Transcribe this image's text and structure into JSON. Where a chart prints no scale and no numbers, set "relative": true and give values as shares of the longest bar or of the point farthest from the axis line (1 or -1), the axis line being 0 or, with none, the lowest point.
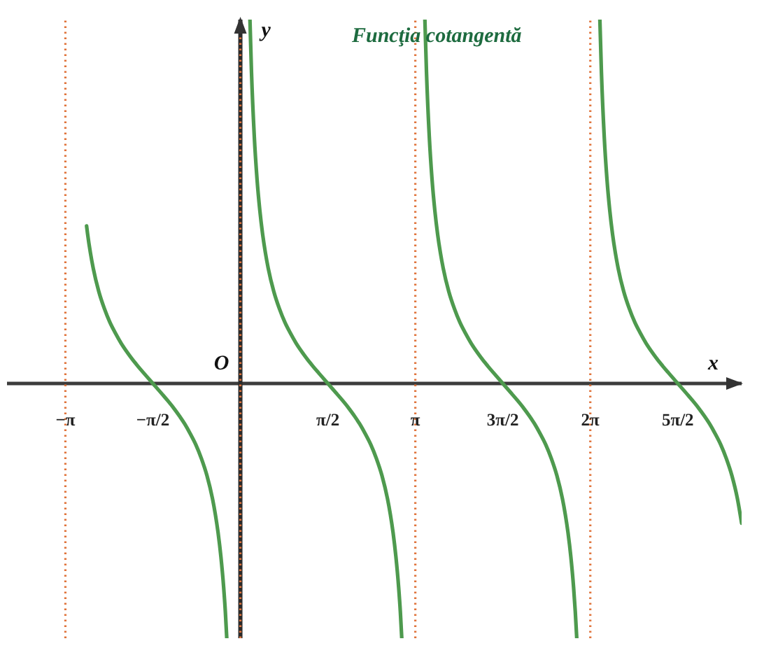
{
  "chart_data": {
    "type": "line",
    "title": "Funcţia cotangentă",
    "xlabel": "x",
    "ylabel": "y",
    "relative": true,
    "xlim": [
      -4.19,
      9.0
    ],
    "xticks": [
      {
        "value": -3.1416,
        "label": "−π"
      },
      {
        "value": -1.5708,
        "label": "−π/2"
      },
      {
        "value": 1.5708,
        "label": "π/2"
      },
      {
        "value": 3.1416,
        "label": "π"
      },
      {
        "value": 4.7124,
        "label": "3π/2"
      },
      {
        "value": 6.2832,
        "label": "2π"
      },
      {
        "value": 7.854,
        "label": "5π/2"
      }
    ],
    "annotations": [
      {
        "text": "O",
        "x": 0,
        "y": 0
      }
    ],
    "series": [
      {
        "color": "#4e9a4e",
        "x": [
          -2.761,
          -2.742,
          -2.692,
          -2.642,
          -2.542,
          -2.442,
          -2.342,
          -2.242,
          -2.142,
          -2.042,
          -1.942,
          -1.842,
          -1.742,
          -1.571,
          -1.4,
          -1.3,
          -1.2,
          -1.1,
          -1.0,
          -0.9,
          -0.8,
          -0.7,
          -0.6,
          -0.5,
          -0.45,
          -0.4,
          -0.35,
          -0.3,
          -0.27,
          -0.244
        ],
        "values": [
          0.433,
          0.41,
          0.359,
          0.317,
          0.253,
          0.206,
          0.168,
          0.138,
          0.111,
          0.088,
          0.067,
          0.048,
          0.03,
          0,
          -0.03,
          -0.048,
          -0.067,
          -0.088,
          -0.111,
          -0.138,
          -0.168,
          -0.206,
          -0.253,
          -0.317,
          -0.359,
          -0.41,
          -0.475,
          -0.56,
          -0.626,
          -0.7
        ]
      },
      {
        "color": "#4e9a4e",
        "x": [
          0.172,
          0.2,
          0.25,
          0.3,
          0.35,
          0.4,
          0.45,
          0.5,
          0.6,
          0.7,
          0.8,
          0.9,
          1.0,
          1.1,
          1.2,
          1.3,
          1.4,
          1.571,
          1.742,
          1.842,
          1.942,
          2.042,
          2.142,
          2.242,
          2.342,
          2.442,
          2.542,
          2.642,
          2.692,
          2.742,
          2.792,
          2.842,
          2.872,
          2.898
        ],
        "values": [
          1,
          0.855,
          0.679,
          0.56,
          0.475,
          0.41,
          0.359,
          0.317,
          0.253,
          0.206,
          0.168,
          0.138,
          0.111,
          0.088,
          0.067,
          0.048,
          0.03,
          0,
          -0.03,
          -0.048,
          -0.067,
          -0.088,
          -0.111,
          -0.138,
          -0.168,
          -0.206,
          -0.253,
          -0.317,
          -0.359,
          -0.41,
          -0.475,
          -0.56,
          -0.626,
          -0.7
        ]
      },
      {
        "color": "#4e9a4e",
        "x": [
          3.313,
          3.342,
          3.392,
          3.442,
          3.492,
          3.542,
          3.592,
          3.642,
          3.742,
          3.842,
          3.942,
          4.042,
          4.142,
          4.242,
          4.342,
          4.442,
          4.542,
          4.712,
          4.883,
          4.983,
          5.083,
          5.183,
          5.283,
          5.383,
          5.483,
          5.583,
          5.683,
          5.783,
          5.833,
          5.883,
          5.933,
          5.983,
          6.013,
          6.04
        ],
        "values": [
          1,
          0.855,
          0.679,
          0.56,
          0.475,
          0.41,
          0.359,
          0.317,
          0.253,
          0.206,
          0.168,
          0.138,
          0.111,
          0.088,
          0.067,
          0.048,
          0.03,
          0,
          -0.03,
          -0.048,
          -0.067,
          -0.088,
          -0.111,
          -0.138,
          -0.168,
          -0.206,
          -0.253,
          -0.317,
          -0.359,
          -0.41,
          -0.475,
          -0.56,
          -0.626,
          -0.7
        ]
      },
      {
        "color": "#4e9a4e",
        "x": [
          6.455,
          6.483,
          6.533,
          6.583,
          6.633,
          6.683,
          6.733,
          6.783,
          6.883,
          6.983,
          7.083,
          7.183,
          7.283,
          7.383,
          7.483,
          7.583,
          7.683,
          7.854,
          8.025,
          8.125,
          8.225,
          8.325,
          8.425,
          8.525,
          8.625,
          8.725,
          8.825,
          8.925,
          9.0
        ],
        "values": [
          1,
          0.855,
          0.679,
          0.56,
          0.475,
          0.41,
          0.359,
          0.317,
          0.253,
          0.206,
          0.168,
          0.138,
          0.111,
          0.088,
          0.067,
          0.048,
          0.03,
          0,
          -0.03,
          -0.048,
          -0.067,
          -0.088,
          -0.111,
          -0.138,
          -0.168,
          -0.206,
          -0.253,
          -0.317,
          -0.384
        ]
      }
    ],
    "ref_lines": [
      {
        "axis": "x",
        "value": -3.1416,
        "color": "#e0743c",
        "line_style": "dotted"
      },
      {
        "axis": "x",
        "value": 0,
        "color": "#e0743c",
        "line_style": "dotted"
      },
      {
        "axis": "x",
        "value": 3.1416,
        "color": "#e0743c",
        "line_style": "dotted"
      },
      {
        "axis": "x",
        "value": 6.2832,
        "color": "#e0743c",
        "line_style": "dotted"
      }
    ]
  }
}
